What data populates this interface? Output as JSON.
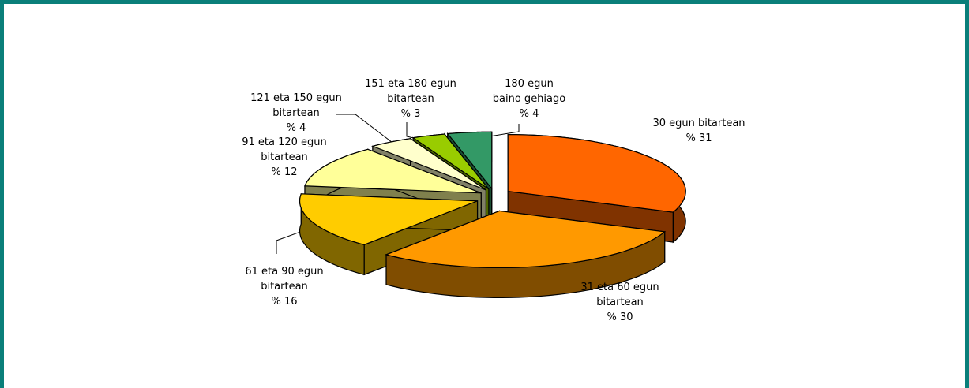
{
  "chart_data": {
    "type": "pie3d",
    "categories": [
      "30 egun bitartean",
      "31 eta 60 egun bitartean",
      "61 eta 90 egun bitartean",
      "91 eta 120 egun bitartean",
      "121 eta 150 egun bitartean",
      "151 eta 180 egun bitartean",
      "180 egun baino gehiago"
    ],
    "values": [
      31,
      30,
      16,
      12,
      4,
      3,
      4
    ],
    "value_labels": [
      "% 31",
      "% 30",
      "% 16",
      "% 12",
      "% 4",
      "% 3",
      "% 4"
    ],
    "colors": [
      "#ff6600",
      "#ff9900",
      "#ffcc00",
      "#ffff99",
      "#ffffcc",
      "#99cc00",
      "#339966"
    ]
  }
}
